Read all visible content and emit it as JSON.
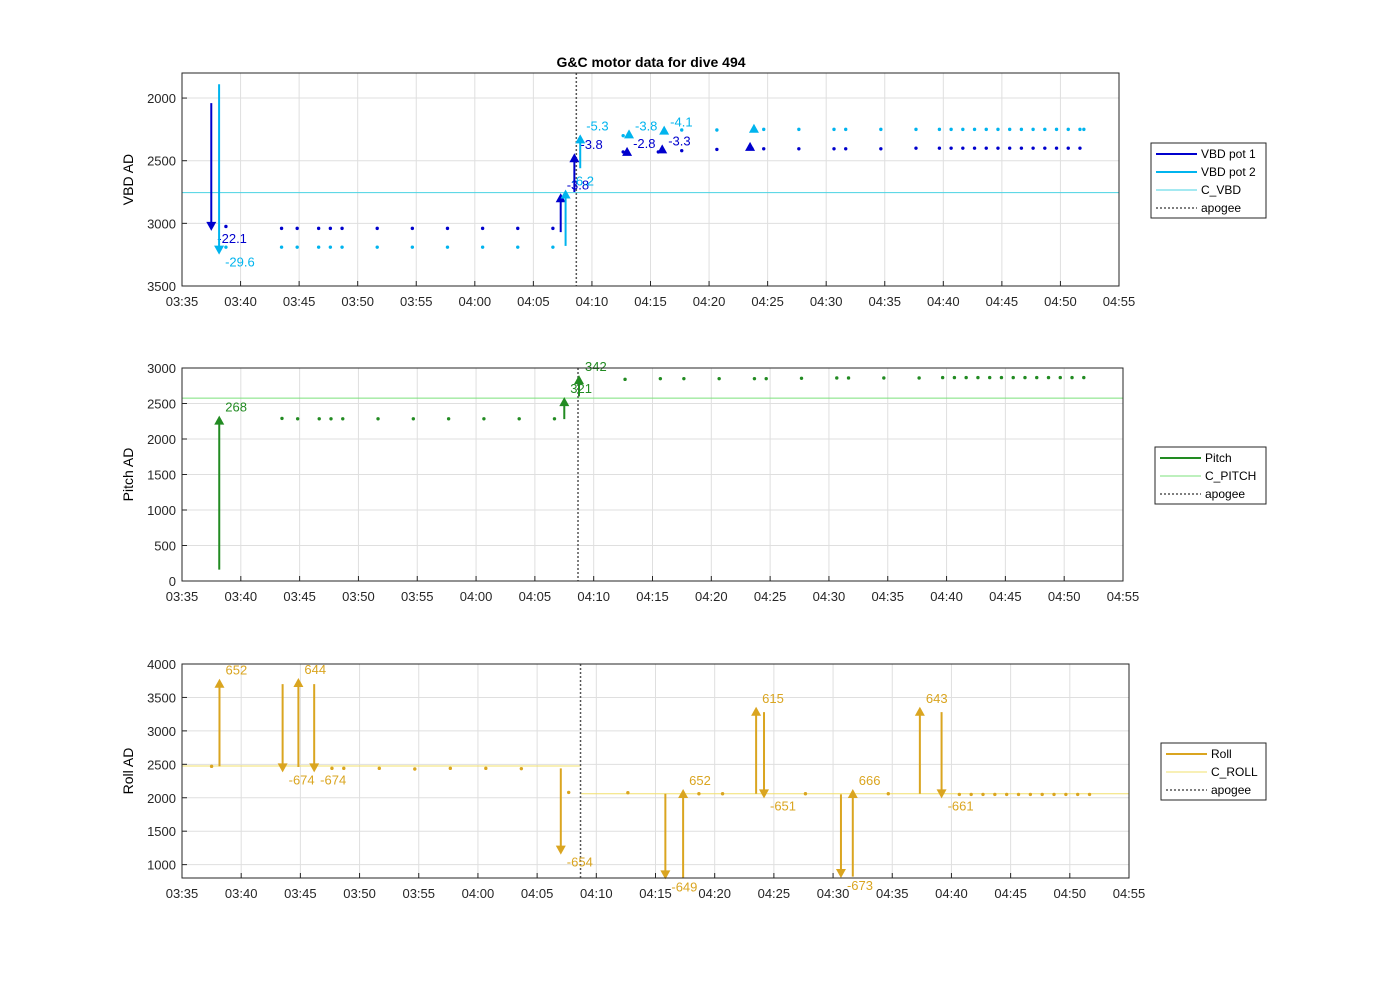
{
  "chart_data": [
    {
      "type": "line",
      "title": "G&C motor data for dive 494",
      "ylabel": "VBD AD",
      "xlim": [
        "03:35",
        "04:55"
      ],
      "x_ticks": [
        "03:35",
        "03:40",
        "03:45",
        "03:50",
        "03:55",
        "04:00",
        "04:05",
        "04:10",
        "04:15",
        "04:20",
        "04:25",
        "04:30",
        "04:35",
        "04:40",
        "04:45",
        "04:50",
        "04:55"
      ],
      "ylim": [
        1800,
        3500
      ],
      "y_reversed": true,
      "y_ticks": [
        2000,
        2500,
        3000,
        3500
      ],
      "grid": true,
      "legend_placement": "right",
      "legend": [
        "VBD pot 1",
        "VBD pot 2",
        "C_VBD",
        "apogee"
      ],
      "colors": {
        "pot1": "#0000cd",
        "pot2": "#00b4ee",
        "c_line": "#49d3e3",
        "apogee": "#555555"
      },
      "apogee_x": "04:08:40",
      "reference": {
        "name": "C_VBD",
        "value": 2755
      },
      "series": [
        {
          "name": "VBD pot 1",
          "x": [
            "03:38:45",
            "03:43:30",
            "03:44:50",
            "03:46:40",
            "03:47:40",
            "03:48:40",
            "03:51:40",
            "03:54:40",
            "03:57:40",
            "04:00:40",
            "04:03:40",
            "04:06:40",
            "04:12:40",
            "04:15:40",
            "04:17:40",
            "04:20:40",
            "04:23:40",
            "04:24:40",
            "04:27:40",
            "04:30:40",
            "04:31:40",
            "04:34:40",
            "04:37:40",
            "04:39:40",
            "04:40:40",
            "04:41:40",
            "04:42:40",
            "04:43:40",
            "04:44:40",
            "04:45:40",
            "04:46:40",
            "04:47:40",
            "04:48:40",
            "04:49:40",
            "04:50:40",
            "04:51:40"
          ],
          "y": [
            3025,
            3040,
            3040,
            3040,
            3040,
            3040,
            3040,
            3040,
            3040,
            3040,
            3040,
            3040,
            2430,
            2430,
            2420,
            2410,
            2405,
            2405,
            2405,
            2405,
            2405,
            2405,
            2400,
            2400,
            2400,
            2400,
            2400,
            2400,
            2400,
            2400,
            2400,
            2400,
            2400,
            2400,
            2400,
            2400
          ]
        },
        {
          "name": "VBD pot 2",
          "x": [
            "03:38:45",
            "03:43:30",
            "03:44:50",
            "03:46:40",
            "03:47:40",
            "03:48:40",
            "03:51:40",
            "03:54:40",
            "03:57:40",
            "04:00:40",
            "04:03:40",
            "04:06:40",
            "04:12:40",
            "04:17:40",
            "04:20:40",
            "04:24:40",
            "04:27:40",
            "04:30:40",
            "04:31:40",
            "04:34:40",
            "04:37:40",
            "04:39:40",
            "04:40:40",
            "04:41:40",
            "04:42:40",
            "04:43:40",
            "04:44:40",
            "04:45:40",
            "04:46:40",
            "04:47:40",
            "04:48:40",
            "04:49:40",
            "04:50:40",
            "04:51:40",
            "04:52:00"
          ],
          "y": [
            3190,
            3190,
            3190,
            3190,
            3190,
            3190,
            3190,
            3190,
            3190,
            3190,
            3190,
            3190,
            2300,
            2255,
            2255,
            2250,
            2250,
            2250,
            2250,
            2250,
            2250,
            2250,
            2250,
            2250,
            2250,
            2250,
            2250,
            2250,
            2250,
            2250,
            2250,
            2250,
            2250,
            2250,
            2250
          ]
        }
      ],
      "motor_moves": [
        {
          "series": "VBD pot 1",
          "x": "03:37:30",
          "from": 2040,
          "to": 3060,
          "label": "-22.1"
        },
        {
          "series": "VBD pot 2",
          "x": "03:38:10",
          "from": 1890,
          "to": 3250,
          "label": "-29.6"
        },
        {
          "series": "VBD pot 1",
          "x": "04:07:20",
          "from": 3070,
          "to": 2760,
          "label": "-3.8"
        },
        {
          "series": "VBD pot 2",
          "x": "04:07:45",
          "from": 3180,
          "to": 2730,
          "label": "-6.2"
        },
        {
          "series": "VBD pot 1",
          "x": "04:08:30",
          "from": 2750,
          "to": 2440,
          "label": "-3.8"
        },
        {
          "series": "VBD pot 2",
          "x": "04:09:00",
          "from": 2560,
          "to": 2290,
          "label": "-5.3"
        },
        {
          "series": "VBD pot 1",
          "x": "04:13:00",
          "from": 2430,
          "to": 2430,
          "label": "-2.8"
        },
        {
          "series": "VBD pot 2",
          "x": "04:13:10",
          "from": 2290,
          "to": 2290,
          "label": "-3.8"
        },
        {
          "series": "VBD pot 1",
          "x": "04:16:00",
          "from": 2410,
          "to": 2410,
          "label": "-3.3"
        },
        {
          "series": "VBD pot 2",
          "x": "04:16:10",
          "from": 2260,
          "to": 2260,
          "label": "-4.1"
        },
        {
          "series": "VBD pot 1",
          "x": "04:23:30",
          "from": 2390,
          "to": 2390,
          "label": ""
        },
        {
          "series": "VBD pot 2",
          "x": "04:23:50",
          "from": 2245,
          "to": 2245,
          "label": ""
        }
      ]
    },
    {
      "type": "line",
      "ylabel": "Pitch AD",
      "xlim": [
        "03:35",
        "04:55"
      ],
      "x_ticks": [
        "03:35",
        "03:40",
        "03:45",
        "03:50",
        "03:55",
        "04:00",
        "04:05",
        "04:10",
        "04:15",
        "04:20",
        "04:25",
        "04:30",
        "04:35",
        "04:40",
        "04:45",
        "04:50",
        "04:55"
      ],
      "ylim": [
        0,
        3000
      ],
      "y_ticks": [
        0,
        500,
        1000,
        1500,
        2000,
        2500,
        3000
      ],
      "grid": true,
      "legend_placement": "right",
      "legend": [
        "Pitch",
        "C_PITCH",
        "apogee"
      ],
      "colors": {
        "main": "#228b22",
        "c_line": "#7be07b",
        "apogee": "#555555"
      },
      "apogee_x": "04:08:40",
      "reference": {
        "name": "C_PITCH",
        "value": 2575
      },
      "series": [
        {
          "name": "Pitch",
          "x": [
            "03:43:30",
            "03:44:50",
            "03:46:40",
            "03:47:40",
            "03:48:40",
            "03:51:40",
            "03:54:40",
            "03:57:40",
            "04:00:40",
            "04:03:40",
            "04:06:40",
            "04:12:40",
            "04:15:40",
            "04:17:40",
            "04:20:40",
            "04:23:40",
            "04:24:40",
            "04:27:40",
            "04:30:40",
            "04:31:40",
            "04:34:40",
            "04:37:40",
            "04:39:40",
            "04:40:40",
            "04:41:40",
            "04:42:40",
            "04:43:40",
            "04:44:40",
            "04:45:40",
            "04:46:40",
            "04:47:40",
            "04:48:40",
            "04:49:40",
            "04:50:40",
            "04:51:40"
          ],
          "y": [
            2290,
            2285,
            2285,
            2285,
            2285,
            2285,
            2285,
            2285,
            2285,
            2285,
            2285,
            2840,
            2850,
            2850,
            2850,
            2850,
            2850,
            2855,
            2860,
            2860,
            2860,
            2860,
            2865,
            2865,
            2865,
            2865,
            2865,
            2865,
            2865,
            2865,
            2865,
            2865,
            2865,
            2865,
            2865
          ]
        }
      ],
      "motor_moves": [
        {
          "series": "Pitch",
          "x": "03:38:10",
          "from": 160,
          "to": 2330,
          "label": "268"
        },
        {
          "series": "Pitch",
          "x": "04:07:30",
          "from": 2280,
          "to": 2590,
          "label": "321"
        },
        {
          "series": "Pitch",
          "x": "04:08:45",
          "from": 2600,
          "to": 2900,
          "label": "342"
        }
      ]
    },
    {
      "type": "line",
      "ylabel": "Roll AD",
      "xlim": [
        "03:35",
        "04:55"
      ],
      "x_ticks": [
        "03:35",
        "03:40",
        "03:45",
        "03:50",
        "03:55",
        "04:00",
        "04:05",
        "04:10",
        "04:15",
        "04:20",
        "04:25",
        "04:30",
        "04:35",
        "04:40",
        "04:45",
        "04:50",
        "04:55"
      ],
      "ylim": [
        800,
        4000
      ],
      "y_ticks": [
        1000,
        1500,
        2000,
        2500,
        3000,
        3500,
        4000
      ],
      "grid": true,
      "legend_placement": "right",
      "legend": [
        "Roll",
        "C_ROLL",
        "apogee"
      ],
      "colors": {
        "main": "#daa520",
        "c_line": "#f2e06e",
        "apogee": "#555555"
      },
      "apogee_x": "04:08:40",
      "reference_segments": [
        {
          "name": "C_ROLL",
          "x0": "03:35",
          "x1": "04:08:40",
          "value": 2475
        },
        {
          "name": "C_ROLL",
          "x0": "04:08:40",
          "x1": "04:55",
          "value": 2060
        }
      ],
      "series": [
        {
          "name": "Roll",
          "x": [
            "03:37:30",
            "03:47:40",
            "03:48:40",
            "03:51:40",
            "03:54:40",
            "03:57:40",
            "04:00:40",
            "04:03:40",
            "04:07:40",
            "04:12:40",
            "04:18:40",
            "04:20:40",
            "04:27:40",
            "04:34:40",
            "04:40:40",
            "04:41:40",
            "04:42:40",
            "04:43:40",
            "04:44:40",
            "04:45:40",
            "04:46:40",
            "04:47:40",
            "04:48:40",
            "04:49:40",
            "04:50:40",
            "04:51:40"
          ],
          "y": [
            2470,
            2440,
            2440,
            2440,
            2430,
            2440,
            2440,
            2435,
            2080,
            2075,
            2060,
            2060,
            2060,
            2060,
            2050,
            2050,
            2050,
            2050,
            2050,
            2050,
            2050,
            2050,
            2050,
            2050,
            2050,
            2050
          ]
        }
      ],
      "motor_moves": [
        {
          "series": "Roll",
          "x": "03:38:10",
          "from": 2470,
          "to": 3780,
          "label": "652"
        },
        {
          "series": "Roll",
          "x": "03:43:30",
          "from": 3700,
          "to": 2380,
          "label": "-674"
        },
        {
          "series": "Roll",
          "x": "03:44:50",
          "from": 2460,
          "to": 3790,
          "label": "644"
        },
        {
          "series": "Roll",
          "x": "03:46:10",
          "from": 3700,
          "to": 2380,
          "label": "-674"
        },
        {
          "series": "Roll",
          "x": "04:07:00",
          "from": 2440,
          "to": 1150,
          "label": "-654"
        },
        {
          "series": "Roll",
          "x": "04:15:50",
          "from": 2060,
          "to": 780,
          "label": "-649"
        },
        {
          "series": "Roll",
          "x": "04:17:20",
          "from": 800,
          "to": 2130,
          "label": "652"
        },
        {
          "series": "Roll",
          "x": "04:23:30",
          "from": 2060,
          "to": 3360,
          "label": "615"
        },
        {
          "series": "Roll",
          "x": "04:24:10",
          "from": 3280,
          "to": 1990,
          "label": "-651"
        },
        {
          "series": "Roll",
          "x": "04:30:40",
          "from": 2050,
          "to": 800,
          "label": "-673"
        },
        {
          "series": "Roll",
          "x": "04:31:40",
          "from": 820,
          "to": 2130,
          "label": "666"
        },
        {
          "series": "Roll",
          "x": "04:37:20",
          "from": 2060,
          "to": 3360,
          "label": "643"
        },
        {
          "series": "Roll",
          "x": "04:39:10",
          "from": 3280,
          "to": 1990,
          "label": "-661"
        }
      ]
    }
  ]
}
